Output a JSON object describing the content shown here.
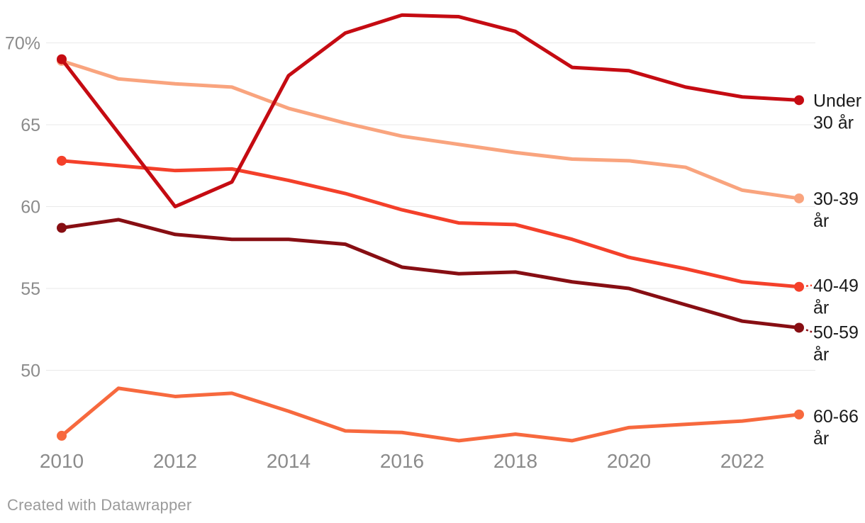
{
  "chart_data": {
    "type": "line",
    "x": [
      2010,
      2011,
      2012,
      2013,
      2014,
      2015,
      2016,
      2017,
      2018,
      2019,
      2020,
      2021,
      2022,
      2023
    ],
    "series": [
      {
        "name": "Under 30 år",
        "label_lines": [
          "Under",
          "30 år"
        ],
        "color": "#c50b12",
        "leader_dash": false,
        "values": [
          69.0,
          64.5,
          60.0,
          61.5,
          68.0,
          70.6,
          71.7,
          71.6,
          70.7,
          68.5,
          68.3,
          67.3,
          66.7,
          66.5
        ]
      },
      {
        "name": "30-39 år",
        "label_lines": [
          "30-39",
          "år"
        ],
        "color": "#f9a47e",
        "leader_dash": false,
        "values": [
          68.9,
          67.8,
          67.5,
          67.3,
          66.0,
          65.1,
          64.3,
          63.8,
          63.3,
          62.9,
          62.8,
          62.4,
          61.0,
          60.5
        ]
      },
      {
        "name": "40-49 år",
        "label_lines": [
          "40-49",
          "år"
        ],
        "color": "#f4402a",
        "leader_dash": true,
        "values": [
          62.8,
          62.5,
          62.2,
          62.3,
          61.6,
          60.8,
          59.8,
          59.0,
          58.9,
          58.0,
          56.9,
          56.2,
          55.4,
          55.1
        ]
      },
      {
        "name": "50-59 år",
        "label_lines": [
          "50-59",
          "år"
        ],
        "color": "#870e13",
        "leader_dash": true,
        "values": [
          58.7,
          59.2,
          58.3,
          58.0,
          58.0,
          57.7,
          56.3,
          55.9,
          56.0,
          55.4,
          55.0,
          54.0,
          53.0,
          52.6
        ]
      },
      {
        "name": "60-66 år",
        "label_lines": [
          "60-66",
          "år"
        ],
        "color": "#f7693e",
        "leader_dash": false,
        "values": [
          46.0,
          48.9,
          48.4,
          48.6,
          47.5,
          46.3,
          46.2,
          45.7,
          46.1,
          45.7,
          46.5,
          46.7,
          46.9,
          47.3
        ]
      }
    ],
    "x_ticks": [
      2010,
      2012,
      2014,
      2016,
      2018,
      2020,
      2022
    ],
    "y_ticks": [
      {
        "value": 70,
        "label": "70%"
      },
      {
        "value": 65,
        "label": "65"
      },
      {
        "value": 60,
        "label": "60"
      },
      {
        "value": 55,
        "label": "55"
      },
      {
        "value": 50,
        "label": "50"
      }
    ],
    "ylim": [
      45,
      72.5
    ],
    "xlim": [
      2010,
      2023
    ],
    "grid": "horizontal",
    "legend_position": "right-of-line-end",
    "title": "",
    "xlabel": "",
    "ylabel": ""
  },
  "footer": {
    "credit": "Created with Datawrapper"
  },
  "colors": {
    "background": "#ffffff",
    "gridline": "#e9e9e9",
    "axis_label": "#8b8b8b",
    "series_label": "#1a1a1a",
    "footer_text": "#9b9b9b"
  }
}
